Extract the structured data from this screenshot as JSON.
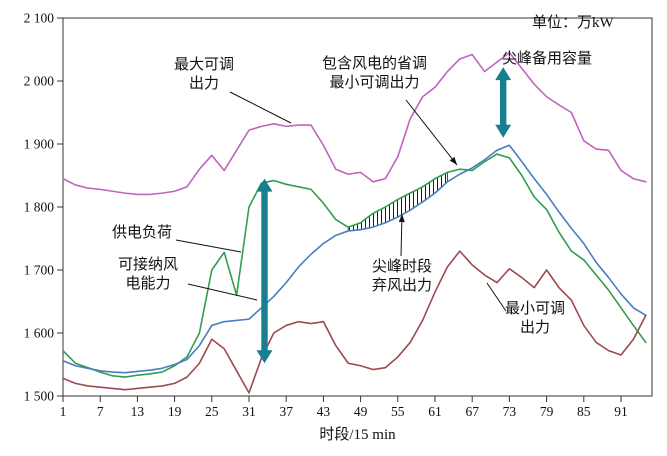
{
  "labels": {
    "unit": "单位：万kW",
    "max_output": [
      "最大可调",
      "出力"
    ],
    "incl_wind": [
      "包含风电的省调",
      "最小可调出力"
    ],
    "peak_reserve": "尖峰备用容量",
    "load": "供电负荷",
    "wind_capacity": [
      "可接纳风",
      "电能力"
    ],
    "curtailment": [
      "尖峰时段",
      "弃风出力"
    ],
    "min_output": [
      "最小可调",
      "出力"
    ],
    "xlabel": "时段/15 min"
  },
  "chart_data": {
    "type": "line",
    "title": "",
    "unit_label": "单位：万kW",
    "xlabel": "时段/15 min",
    "ylabel": "",
    "xlim": [
      1,
      96
    ],
    "ylim": [
      1500,
      2100
    ],
    "grid": false,
    "x_ticks": [
      1,
      7,
      13,
      19,
      25,
      31,
      37,
      43,
      49,
      55,
      61,
      67,
      73,
      79,
      85,
      91
    ],
    "y_ticks": [
      {
        "value": 1500,
        "label": "1 500"
      },
      {
        "value": 1600,
        "label": "1 600"
      },
      {
        "value": 1700,
        "label": "1 700"
      },
      {
        "value": 1800,
        "label": "1 800"
      },
      {
        "value": 1900,
        "label": "1 900"
      },
      {
        "value": 2000,
        "label": "2 000"
      },
      {
        "value": 2100,
        "label": "2 100"
      }
    ],
    "x": [
      1,
      3,
      5,
      7,
      9,
      11,
      13,
      15,
      17,
      19,
      21,
      23,
      25,
      27,
      29,
      31,
      33,
      35,
      37,
      39,
      41,
      43,
      45,
      47,
      49,
      51,
      53,
      55,
      57,
      59,
      61,
      63,
      65,
      67,
      69,
      71,
      73,
      75,
      77,
      79,
      81,
      83,
      85,
      87,
      89,
      91,
      93,
      95
    ],
    "series": [
      {
        "name": "最大可调出力",
        "id": "max-adjustable-output",
        "color": "#c263be",
        "values": [
          1845,
          1835,
          1830,
          1828,
          1825,
          1822,
          1820,
          1820,
          1822,
          1825,
          1832,
          1860,
          1882,
          1858,
          1890,
          1922,
          1928,
          1932,
          1928,
          1930,
          1930,
          1898,
          1860,
          1852,
          1855,
          1840,
          1845,
          1880,
          1940,
          1975,
          1990,
          2015,
          2035,
          2042,
          2015,
          2030,
          2045,
          2020,
          1995,
          1975,
          1962,
          1950,
          1905,
          1892,
          1890,
          1858,
          1845,
          1840
        ]
      },
      {
        "name": "供电负荷",
        "id": "supply-load",
        "color": "#2f9e4e",
        "values": [
          1572,
          1552,
          1545,
          1538,
          1532,
          1530,
          1533,
          1535,
          1538,
          1548,
          1562,
          1600,
          1700,
          1728,
          1660,
          1800,
          1838,
          1842,
          1836,
          1832,
          1828,
          1806,
          1780,
          1768,
          1775,
          1790,
          1800,
          1812,
          1822,
          1832,
          1845,
          1855,
          1860,
          1858,
          1872,
          1884,
          1878,
          1850,
          1816,
          1796,
          1760,
          1730,
          1716,
          1692,
          1668,
          1640,
          1612,
          1585
        ]
      },
      {
        "name": "包含风电的省调最小可调出力",
        "id": "provincial-min-adjustable-with-wind",
        "color": "#4a7ec0",
        "values": [
          1556,
          1548,
          1544,
          1540,
          1538,
          1537,
          1539,
          1541,
          1544,
          1550,
          1558,
          1580,
          1612,
          1618,
          1620,
          1622,
          1640,
          1658,
          1680,
          1705,
          1725,
          1742,
          1755,
          1762,
          1764,
          1768,
          1775,
          1784,
          1795,
          1808,
          1822,
          1840,
          1852,
          1862,
          1875,
          1890,
          1898,
          1872,
          1845,
          1820,
          1792,
          1766,
          1742,
          1712,
          1688,
          1662,
          1640,
          1628
        ]
      },
      {
        "name": "最小可调出力",
        "id": "min-adjustable-output",
        "color": "#9d4950",
        "values": [
          1528,
          1520,
          1516,
          1514,
          1512,
          1510,
          1512,
          1514,
          1516,
          1520,
          1530,
          1552,
          1590,
          1575,
          1540,
          1505,
          1560,
          1600,
          1612,
          1618,
          1615,
          1618,
          1580,
          1552,
          1548,
          1542,
          1545,
          1562,
          1585,
          1620,
          1665,
          1705,
          1730,
          1708,
          1692,
          1680,
          1702,
          1688,
          1672,
          1700,
          1672,
          1652,
          1612,
          1585,
          1572,
          1565,
          1590,
          1628
        ]
      }
    ],
    "hatch": {
      "x_start": 47,
      "x_end": 63,
      "top_index": 1,
      "bottom_index": 2,
      "label": "尖峰时段弃风出力"
    },
    "arrows": [
      {
        "id": "wind-capacity-range",
        "name": "可接纳风电能力",
        "x": 33.5,
        "y1": 1845,
        "y2": 1552,
        "color": "#177f8f"
      },
      {
        "id": "peak-reserve-range",
        "name": "尖峰备用容量",
        "x": 72,
        "y1": 2022,
        "y2": 1910,
        "color": "#177f8f"
      }
    ]
  }
}
